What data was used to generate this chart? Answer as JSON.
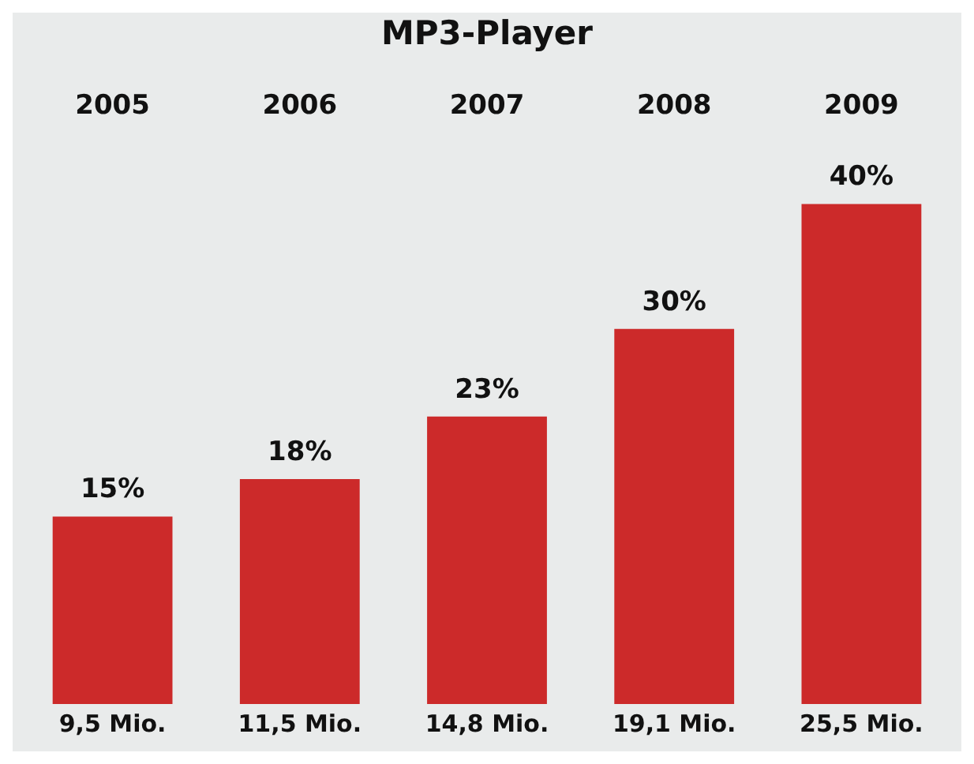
{
  "chart_data": {
    "type": "bar",
    "title": "MP3-Player",
    "categories": [
      "2005",
      "2006",
      "2007",
      "2008",
      "2009"
    ],
    "values": [
      15,
      18,
      23,
      30,
      40
    ],
    "color": "#cc2a2a",
    "value_labels": [
      "15%",
      "18%",
      "23%",
      "30%",
      "40%"
    ],
    "annotations": [
      {
        "text": "9,5 Mio.",
        "x": "2005",
        "y": 0
      },
      {
        "text": "11,5 Mio.",
        "x": "2006",
        "y": 0
      },
      {
        "text": "14,8 Mio.",
        "x": "2007",
        "y": 0
      },
      {
        "text": "19,1 Mio.",
        "x": "2008",
        "y": 0
      },
      {
        "text": "25,5 Mio.",
        "x": "2009",
        "y": 0
      }
    ],
    "grid": false,
    "legend": false
  }
}
